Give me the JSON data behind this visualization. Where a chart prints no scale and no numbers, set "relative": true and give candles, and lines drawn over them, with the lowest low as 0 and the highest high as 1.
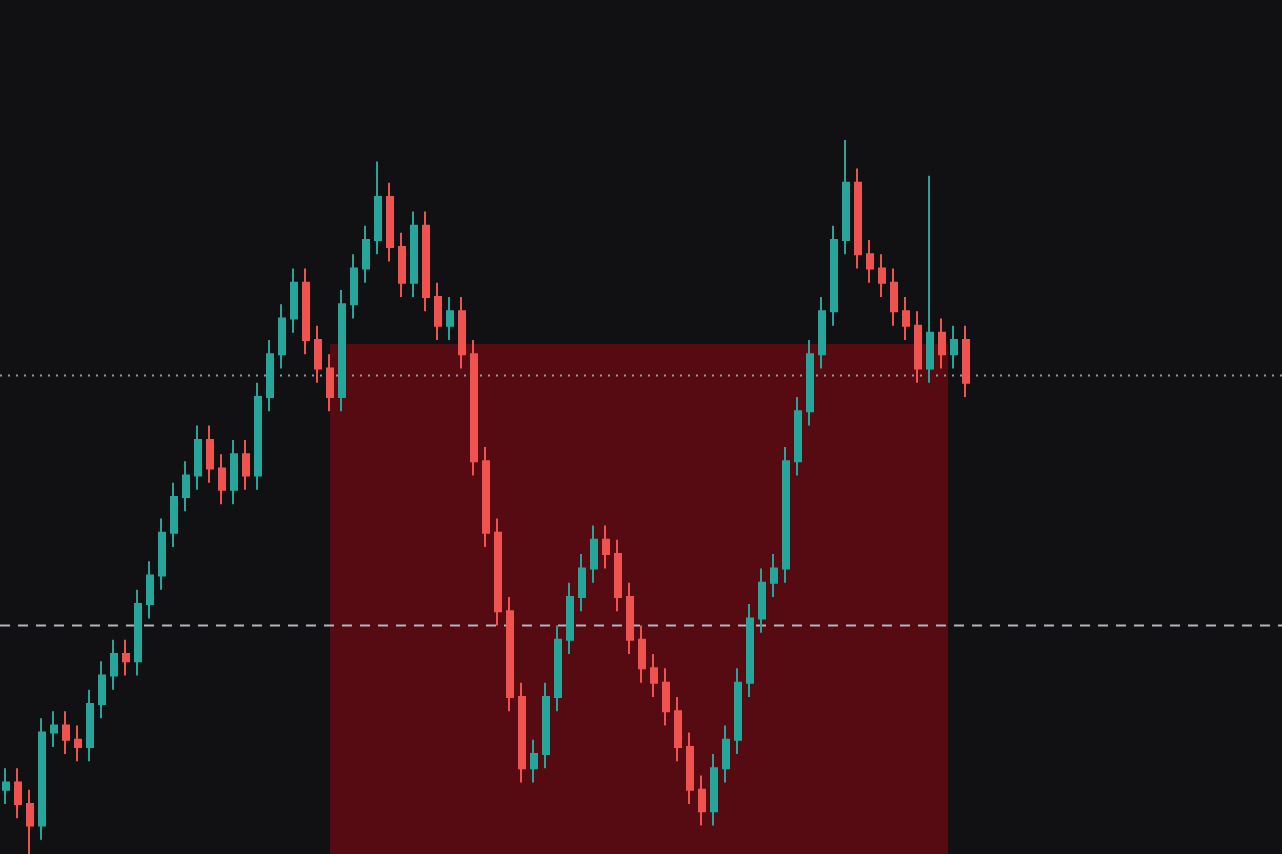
{
  "chart_data": {
    "type": "candlestick",
    "relative": true,
    "ohlc": [
      [
        0.09,
        0.12,
        0.07,
        0.1
      ],
      [
        0.1,
        0.12,
        0.05,
        0.07
      ],
      [
        0.07,
        0.09,
        0,
        0.04
      ],
      [
        0.04,
        0.19,
        0.02,
        0.17
      ],
      [
        0.17,
        0.2,
        0.15,
        0.18
      ],
      [
        0.18,
        0.2,
        0.14,
        0.16
      ],
      [
        0.16,
        0.18,
        0.13,
        0.15
      ],
      [
        0.15,
        0.23,
        0.13,
        0.21
      ],
      [
        0.21,
        0.27,
        0.19,
        0.25
      ],
      [
        0.25,
        0.3,
        0.23,
        0.28
      ],
      [
        0.28,
        0.3,
        0.25,
        0.27
      ],
      [
        0.27,
        0.37,
        0.25,
        0.35
      ],
      [
        0.35,
        0.41,
        0.33,
        0.39
      ],
      [
        0.39,
        0.47,
        0.37,
        0.45
      ],
      [
        0.45,
        0.52,
        0.43,
        0.5
      ],
      [
        0.5,
        0.55,
        0.48,
        0.53
      ],
      [
        0.53,
        0.6,
        0.51,
        0.58
      ],
      [
        0.58,
        0.6,
        0.52,
        0.54
      ],
      [
        0.54,
        0.56,
        0.49,
        0.51
      ],
      [
        0.51,
        0.58,
        0.49,
        0.56
      ],
      [
        0.56,
        0.58,
        0.51,
        0.53
      ],
      [
        0.53,
        0.66,
        0.51,
        0.64
      ],
      [
        0.64,
        0.72,
        0.62,
        0.7
      ],
      [
        0.7,
        0.77,
        0.68,
        0.75
      ],
      [
        0.75,
        0.82,
        0.73,
        0.8
      ],
      [
        0.8,
        0.82,
        0.7,
        0.72
      ],
      [
        0.72,
        0.74,
        0.66,
        0.68
      ],
      [
        0.68,
        0.7,
        0.62,
        0.64
      ],
      [
        0.64,
        0.79,
        0.62,
        0.77
      ],
      [
        0.77,
        0.84,
        0.75,
        0.82
      ],
      [
        0.82,
        0.88,
        0.8,
        0.86
      ],
      [
        0.86,
        0.97,
        0.84,
        0.92
      ],
      [
        0.92,
        0.94,
        0.83,
        0.85
      ],
      [
        0.85,
        0.87,
        0.78,
        0.8
      ],
      [
        0.8,
        0.9,
        0.78,
        0.88
      ],
      [
        0.88,
        0.9,
        0.76,
        0.78
      ],
      [
        0.78,
        0.8,
        0.72,
        0.74
      ],
      [
        0.74,
        0.78,
        0.72,
        0.76
      ],
      [
        0.76,
        0.78,
        0.68,
        0.7
      ],
      [
        0.7,
        0.72,
        0.53,
        0.55
      ],
      [
        0.55,
        0.57,
        0.43,
        0.45
      ],
      [
        0.45,
        0.47,
        0.32,
        0.34
      ],
      [
        0.34,
        0.36,
        0.2,
        0.22
      ],
      [
        0.22,
        0.24,
        0.1,
        0.12
      ],
      [
        0.12,
        0.16,
        0.1,
        0.14
      ],
      [
        0.14,
        0.24,
        0.12,
        0.22
      ],
      [
        0.22,
        0.32,
        0.2,
        0.3
      ],
      [
        0.3,
        0.38,
        0.28,
        0.36
      ],
      [
        0.36,
        0.42,
        0.34,
        0.4
      ],
      [
        0.4,
        0.46,
        0.38,
        0.44
      ],
      [
        0.44,
        0.46,
        0.4,
        0.42
      ],
      [
        0.42,
        0.44,
        0.34,
        0.36
      ],
      [
        0.36,
        0.38,
        0.28,
        0.3
      ],
      [
        0.3,
        0.32,
        0.24,
        0.26
      ],
      [
        0.26,
        0.28,
        0.22,
        0.24
      ],
      [
        0.24,
        0.26,
        0.18,
        0.2
      ],
      [
        0.2,
        0.22,
        0.13,
        0.15
      ],
      [
        0.15,
        0.17,
        0.07,
        0.09
      ],
      [
        0.09,
        0.11,
        0.04,
        0.06
      ],
      [
        0.06,
        0.14,
        0.04,
        0.12
      ],
      [
        0.12,
        0.18,
        0.1,
        0.16
      ],
      [
        0.16,
        0.26,
        0.14,
        0.24
      ],
      [
        0.24,
        0.35,
        0.22,
        0.33
      ],
      [
        0.33,
        0.4,
        0.31,
        0.38
      ],
      [
        0.38,
        0.42,
        0.36,
        0.4
      ],
      [
        0.4,
        0.57,
        0.38,
        0.55
      ],
      [
        0.55,
        0.64,
        0.53,
        0.62
      ],
      [
        0.62,
        0.72,
        0.6,
        0.7
      ],
      [
        0.7,
        0.78,
        0.68,
        0.76
      ],
      [
        0.76,
        0.88,
        0.74,
        0.86
      ],
      [
        0.86,
        1,
        0.84,
        0.94
      ],
      [
        0.94,
        0.96,
        0.82,
        0.84
      ],
      [
        0.84,
        0.86,
        0.8,
        0.82
      ],
      [
        0.82,
        0.84,
        0.78,
        0.8
      ],
      [
        0.8,
        0.82,
        0.74,
        0.76
      ],
      [
        0.76,
        0.78,
        0.72,
        0.74
      ],
      [
        0.74,
        0.76,
        0.66,
        0.68
      ],
      [
        0.68,
        0.95,
        0.66,
        0.73
      ],
      [
        0.73,
        0.75,
        0.68,
        0.7
      ],
      [
        0.7,
        0.74,
        0.68,
        0.72
      ],
      [
        0.72,
        0.74,
        0.64,
        0.66
      ]
    ],
    "categories": [
      null,
      null,
      null,
      null,
      null,
      null,
      null,
      null,
      null,
      null,
      null,
      null,
      null,
      null,
      null,
      null,
      null,
      null,
      null,
      null,
      null,
      null,
      null,
      null,
      null,
      null,
      null,
      null,
      null,
      null,
      null,
      null,
      null,
      null,
      null,
      null,
      null,
      null,
      null,
      null,
      null,
      null,
      null,
      null,
      null,
      null,
      null,
      null,
      null,
      null,
      null,
      null,
      null,
      null,
      null,
      null,
      null,
      null,
      null,
      null,
      null,
      null,
      null,
      null,
      null,
      null,
      null,
      null,
      null,
      null,
      null,
      null,
      null,
      null,
      null,
      null,
      null,
      null,
      null,
      null,
      null
    ],
    "colors": [
      "#26a69a",
      "#ef5350",
      "#ef5350",
      "#26a69a",
      "#26a69a",
      "#ef5350",
      "#ef5350",
      "#26a69a",
      "#26a69a",
      "#26a69a",
      "#ef5350",
      "#26a69a",
      "#26a69a",
      "#26a69a",
      "#26a69a",
      "#26a69a",
      "#26a69a",
      "#ef5350",
      "#ef5350",
      "#26a69a",
      "#ef5350",
      "#26a69a",
      "#26a69a",
      "#26a69a",
      "#26a69a",
      "#ef5350",
      "#ef5350",
      "#ef5350",
      "#26a69a",
      "#26a69a",
      "#26a69a",
      "#26a69a",
      "#ef5350",
      "#ef5350",
      "#26a69a",
      "#ef5350",
      "#ef5350",
      "#26a69a",
      "#ef5350",
      "#ef5350",
      "#ef5350",
      "#ef5350",
      "#ef5350",
      "#ef5350",
      "#26a69a",
      "#26a69a",
      "#26a69a",
      "#26a69a",
      "#26a69a",
      "#26a69a",
      "#ef5350",
      "#ef5350",
      "#ef5350",
      "#ef5350",
      "#ef5350",
      "#ef5350",
      "#ef5350",
      "#ef5350",
      "#ef5350",
      "#26a69a",
      "#26a69a",
      "#26a69a",
      "#26a69a",
      "#26a69a",
      "#26a69a",
      "#26a69a",
      "#26a69a",
      "#26a69a",
      "#26a69a",
      "#26a69a",
      "#26a69a",
      "#ef5350",
      "#ef5350",
      "#ef5350",
      "#ef5350",
      "#ef5350",
      "#ef5350",
      "#26a69a",
      "#ef5350",
      "#26a69a",
      "#ef5350"
    ],
    "ref_lines": [
      {
        "axis": "y",
        "value": 0.67,
        "label": null,
        "color": "#9598a1",
        "line_style": "dotted"
      },
      {
        "axis": "y",
        "value": 0.32,
        "label": null,
        "color": "#b2b5be",
        "line_style": "dashed"
      }
    ]
  }
}
